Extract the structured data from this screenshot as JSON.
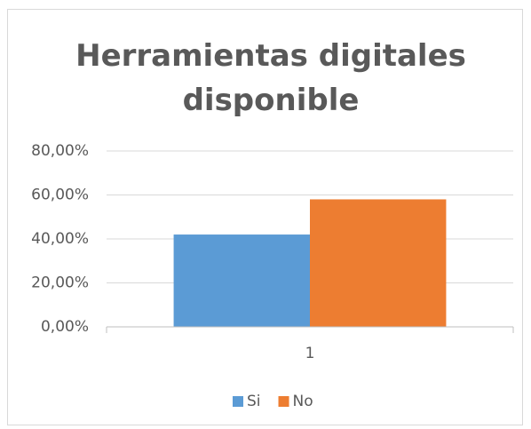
{
  "chart_data": {
    "type": "bar",
    "title": "Herramientas digitales disponible",
    "categories": [
      "1"
    ],
    "series": [
      {
        "name": "Si",
        "color": "#5b9bd5",
        "values": [
          42
        ]
      },
      {
        "name": "No",
        "color": "#ed7d31",
        "values": [
          58
        ]
      }
    ],
    "ylim": [
      0,
      80
    ],
    "yticks": [
      {
        "value": 0,
        "label": "0,00%"
      },
      {
        "value": 20,
        "label": "20,00%"
      },
      {
        "value": 40,
        "label": "40,00%"
      },
      {
        "value": 60,
        "label": "60,00%"
      },
      {
        "value": 80,
        "label": "80,00%"
      }
    ],
    "grid": true,
    "legend": "bottom"
  }
}
